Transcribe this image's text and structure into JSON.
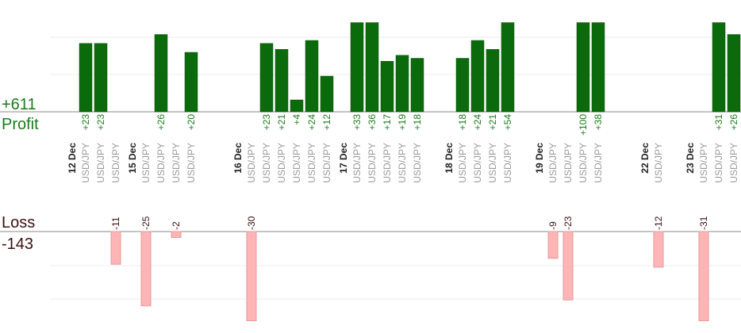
{
  "summary": {
    "profit_total": "+611",
    "profit_label": "Profit",
    "loss_label": "Loss",
    "loss_total": "-143"
  },
  "colors": {
    "profit_bar": "#0b6a0b",
    "profit_bar_dark": "#0a560a",
    "profit_text": "#1a7a1a",
    "loss_bar": "#ffb5b5",
    "loss_bar_edge": "#e69a9a",
    "loss_text": "#3a1010",
    "symbol_text": "#9a9a9a",
    "grid": "#ececec",
    "baseline": "#888888"
  },
  "chart_data": {
    "type": "bar",
    "title": "",
    "symbol": "USD/JPY",
    "profit_total": 611,
    "loss_total": -143,
    "clipped_at": 30,
    "days": [
      {
        "date": "12 Dec",
        "trades": [
          23,
          23,
          -11
        ]
      },
      {
        "date": "15 Dec",
        "trades": [
          -25,
          26,
          -2,
          20
        ]
      },
      {
        "date": "16 Dec",
        "trades": [
          -30,
          23,
          21,
          4,
          24,
          12
        ]
      },
      {
        "date": "17 Dec",
        "trades": [
          33,
          36,
          17,
          19,
          18
        ]
      },
      {
        "date": "18 Dec",
        "trades": [
          18,
          24,
          21,
          54
        ]
      },
      {
        "date": "19 Dec",
        "trades": [
          -9,
          -23,
          100,
          38
        ]
      },
      {
        "date": "22 Dec",
        "trades": [
          -12
        ]
      },
      {
        "date": "23 Dec",
        "trades": [
          -31,
          31,
          26
        ]
      }
    ]
  }
}
